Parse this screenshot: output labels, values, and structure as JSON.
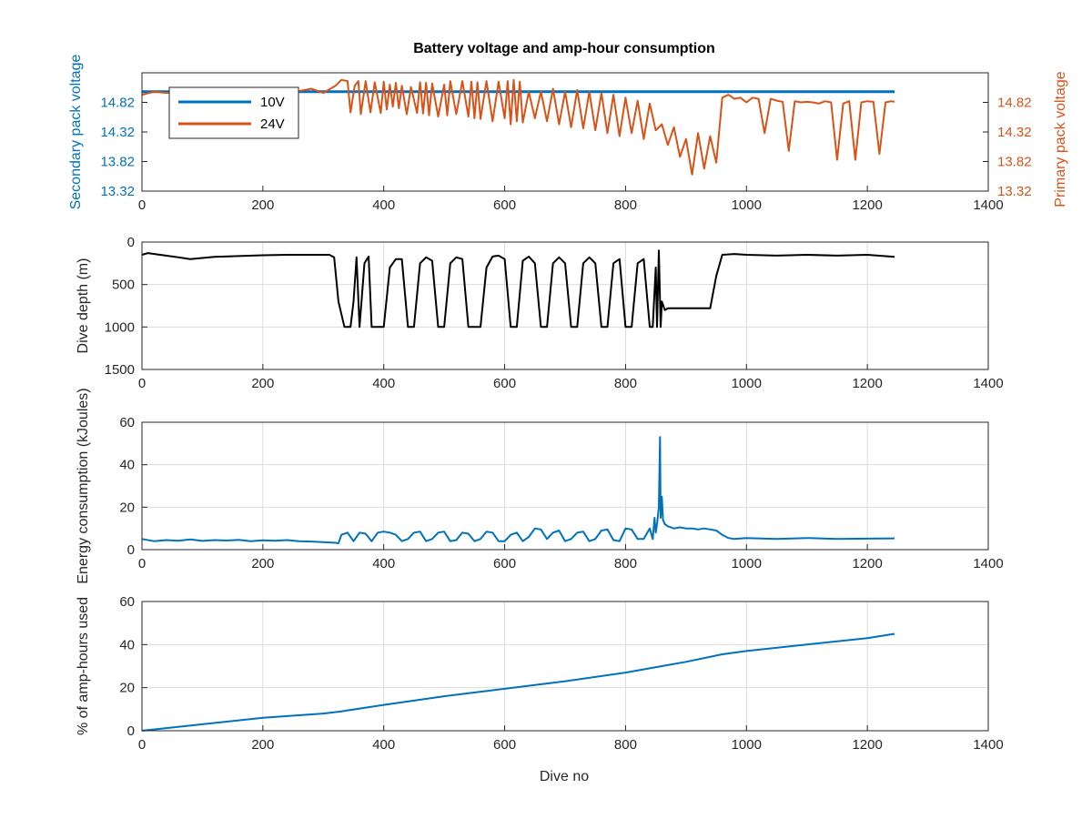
{
  "figure": {
    "title": "Battery voltage and amp-hour consumption",
    "xlabel": "Dive no"
  },
  "colors": {
    "blue": "#0072BD",
    "orange": "#D95319",
    "black": "#000000",
    "axis": "#262626",
    "grid": "#dcdcdc"
  },
  "chart_data": [
    {
      "type": "line",
      "title": "Battery voltage and amp-hour consumption",
      "xlabel": "",
      "ylabel": "Secondary pack voltage",
      "ylabel_right": "Primary pack voltage",
      "xlim": [
        0,
        1400
      ],
      "ylim": [
        13.32,
        15.32
      ],
      "ylim_right": [
        13.32,
        15.32
      ],
      "xticks": [
        "0",
        "200",
        "400",
        "600",
        "800",
        "1000",
        "1200",
        "1400"
      ],
      "yticks": [
        "13.32",
        "13.82",
        "14.32",
        "14.82"
      ],
      "yticks_right": [
        "13.32",
        "13.82",
        "14.32",
        "14.82"
      ],
      "grid": false,
      "legend": {
        "position": "top-left",
        "entries": [
          "10V",
          "24V"
        ]
      },
      "series": [
        {
          "name": "10V",
          "axis": "left",
          "color": "#0072BD",
          "x": [
            0,
            1245
          ],
          "y": [
            15.0,
            15.0
          ]
        },
        {
          "name": "24V",
          "axis": "right",
          "color": "#D95319",
          "x": [
            0,
            20,
            40,
            80,
            120,
            160,
            200,
            240,
            280,
            300,
            320,
            330,
            340,
            345,
            352,
            358,
            362,
            370,
            378,
            385,
            395,
            400,
            405,
            410,
            415,
            420,
            425,
            430,
            438,
            445,
            455,
            460,
            465,
            470,
            475,
            480,
            490,
            500,
            505,
            510,
            520,
            530,
            540,
            545,
            550,
            555,
            560,
            570,
            580,
            590,
            600,
            605,
            610,
            615,
            620,
            625,
            630,
            640,
            650,
            660,
            670,
            680,
            690,
            700,
            710,
            720,
            730,
            740,
            750,
            760,
            770,
            780,
            790,
            800,
            810,
            820,
            830,
            840,
            850,
            860,
            870,
            880,
            890,
            900,
            910,
            920,
            930,
            940,
            950,
            960,
            970,
            980,
            990,
            1000,
            1010,
            1020,
            1030,
            1040,
            1050,
            1060,
            1070,
            1080,
            1090,
            1100,
            1110,
            1120,
            1130,
            1140,
            1150,
            1160,
            1170,
            1180,
            1190,
            1200,
            1210,
            1220,
            1230,
            1240,
            1245
          ],
          "y": [
            14.95,
            15.0,
            14.98,
            15.0,
            14.97,
            14.95,
            14.93,
            14.97,
            15.05,
            14.98,
            15.1,
            15.2,
            15.18,
            14.65,
            15.1,
            15.18,
            14.62,
            15.18,
            14.65,
            15.16,
            14.64,
            15.17,
            14.7,
            15.12,
            14.75,
            15.15,
            14.72,
            15.1,
            14.62,
            15.08,
            14.64,
            15.16,
            14.63,
            15.15,
            14.6,
            15.14,
            14.58,
            15.12,
            14.6,
            15.18,
            14.62,
            15.18,
            14.58,
            15.17,
            14.55,
            15.16,
            14.54,
            15.18,
            14.5,
            15.17,
            14.55,
            15.18,
            14.45,
            15.2,
            14.5,
            15.17,
            14.48,
            15.0,
            14.55,
            15.0,
            14.5,
            15.05,
            14.45,
            15.0,
            14.4,
            15.03,
            14.38,
            15.0,
            14.35,
            14.98,
            14.3,
            14.95,
            14.25,
            14.9,
            14.3,
            14.85,
            14.2,
            14.8,
            14.35,
            14.45,
            14.1,
            14.4,
            13.9,
            14.2,
            13.6,
            14.3,
            13.7,
            14.25,
            13.8,
            14.9,
            14.95,
            14.88,
            14.9,
            14.82,
            14.9,
            14.88,
            14.3,
            14.88,
            14.85,
            14.83,
            14.0,
            14.84,
            14.82,
            14.83,
            14.82,
            14.8,
            14.84,
            14.82,
            13.85,
            14.8,
            14.84,
            13.85,
            14.82,
            14.84,
            14.83,
            13.95,
            14.82,
            14.84,
            14.83
          ]
        }
      ]
    },
    {
      "type": "line",
      "xlabel": "",
      "ylabel": "Dive depth (m)",
      "xlim": [
        0,
        1400
      ],
      "ylim": [
        0,
        1500
      ],
      "y_reversed": true,
      "xticks": [
        "0",
        "200",
        "400",
        "600",
        "800",
        "1000",
        "1200",
        "1400"
      ],
      "yticks": [
        "0",
        "500",
        "1000",
        "1500"
      ],
      "grid": true,
      "series": [
        {
          "color": "#000000",
          "x": [
            0,
            10,
            30,
            60,
            80,
            120,
            160,
            200,
            240,
            280,
            310,
            318,
            325,
            335,
            345,
            350,
            355,
            360,
            368,
            375,
            380,
            390,
            400,
            410,
            420,
            430,
            440,
            450,
            460,
            470,
            480,
            490,
            500,
            510,
            520,
            530,
            540,
            550,
            560,
            570,
            580,
            590,
            600,
            610,
            620,
            630,
            640,
            650,
            660,
            670,
            680,
            690,
            700,
            710,
            720,
            730,
            740,
            750,
            760,
            770,
            780,
            790,
            800,
            810,
            820,
            830,
            840,
            845,
            850,
            852,
            855,
            858,
            860,
            865,
            870,
            880,
            900,
            920,
            940,
            950,
            960,
            980,
            1000,
            1050,
            1100,
            1150,
            1200,
            1245
          ],
          "y": [
            150,
            130,
            150,
            180,
            200,
            175,
            165,
            155,
            150,
            150,
            150,
            180,
            700,
            1000,
            1000,
            700,
            180,
            1000,
            250,
            170,
            1000,
            1000,
            1000,
            300,
            200,
            200,
            1000,
            1000,
            250,
            180,
            220,
            1000,
            1000,
            250,
            180,
            200,
            1000,
            1000,
            1000,
            300,
            170,
            160,
            200,
            1000,
            1000,
            220,
            170,
            250,
            1000,
            1000,
            250,
            180,
            250,
            1000,
            1000,
            250,
            180,
            250,
            1000,
            1000,
            250,
            200,
            1000,
            1000,
            250,
            200,
            1000,
            1000,
            300,
            1000,
            100,
            1000,
            700,
            800,
            780,
            780,
            780,
            780,
            780,
            400,
            150,
            140,
            150,
            160,
            150,
            160,
            150,
            175
          ]
        }
      ]
    },
    {
      "type": "line",
      "xlabel": "",
      "ylabel": "Energy consumption (kJoules)",
      "xlim": [
        0,
        1400
      ],
      "ylim": [
        0,
        60
      ],
      "xticks": [
        "0",
        "200",
        "400",
        "600",
        "800",
        "1000",
        "1200",
        "1400"
      ],
      "yticks": [
        "0",
        "20",
        "40",
        "60"
      ],
      "grid": true,
      "series": [
        {
          "color": "#0072BD",
          "x": [
            0,
            20,
            40,
            60,
            80,
            100,
            120,
            140,
            160,
            180,
            200,
            220,
            240,
            260,
            280,
            300,
            320,
            325,
            330,
            340,
            350,
            360,
            370,
            380,
            390,
            400,
            410,
            420,
            430,
            440,
            450,
            460,
            470,
            480,
            490,
            500,
            510,
            520,
            530,
            540,
            550,
            560,
            570,
            580,
            590,
            600,
            610,
            620,
            630,
            640,
            650,
            660,
            670,
            680,
            690,
            700,
            710,
            720,
            730,
            740,
            750,
            760,
            770,
            780,
            790,
            800,
            810,
            820,
            830,
            840,
            845,
            848,
            850,
            852,
            855,
            857,
            858,
            860,
            862,
            865,
            870,
            880,
            890,
            900,
            910,
            920,
            930,
            940,
            950,
            960,
            970,
            980,
            1000,
            1050,
            1100,
            1150,
            1200,
            1245
          ],
          "y": [
            5,
            4,
            4.5,
            4.2,
            4.8,
            4.1,
            4.5,
            4.3,
            4.6,
            4.0,
            4.4,
            4.2,
            4.5,
            4.0,
            3.8,
            3.5,
            3.2,
            3.0,
            7,
            8,
            4,
            8,
            7.5,
            4,
            8,
            8.5,
            8,
            7,
            4,
            5,
            8,
            8.5,
            4,
            5,
            8,
            8.5,
            4,
            4.5,
            8,
            7.5,
            4,
            5,
            8.5,
            8,
            4,
            4,
            7,
            8,
            4,
            6,
            10,
            9.5,
            5,
            8,
            9,
            4,
            5,
            8,
            8.5,
            4,
            5,
            9,
            9.5,
            4.5,
            4,
            10,
            9.5,
            5,
            5,
            10,
            5,
            15,
            8,
            12,
            20,
            53,
            15,
            25,
            14,
            12,
            11,
            10,
            10.5,
            10,
            10,
            9.5,
            10,
            9.5,
            9,
            7,
            5.5,
            5,
            5.5,
            5,
            5.5,
            5,
            5.2,
            5.3
          ]
        }
      ]
    },
    {
      "type": "line",
      "xlabel": "Dive no",
      "ylabel": "% of amp-hours used",
      "xlim": [
        0,
        1400
      ],
      "ylim": [
        0,
        60
      ],
      "xticks": [
        "0",
        "200",
        "400",
        "600",
        "800",
        "1000",
        "1200",
        "1400"
      ],
      "yticks": [
        "0",
        "20",
        "40",
        "60"
      ],
      "grid": true,
      "series": [
        {
          "color": "#0072BD",
          "x": [
            0,
            100,
            200,
            300,
            330,
            400,
            500,
            600,
            700,
            800,
            860,
            900,
            960,
            1000,
            1100,
            1200,
            1245
          ],
          "y": [
            0,
            3,
            6,
            8,
            9,
            12,
            16,
            19.5,
            23,
            27,
            30,
            32,
            35.5,
            37,
            40,
            43,
            45
          ]
        }
      ]
    }
  ]
}
